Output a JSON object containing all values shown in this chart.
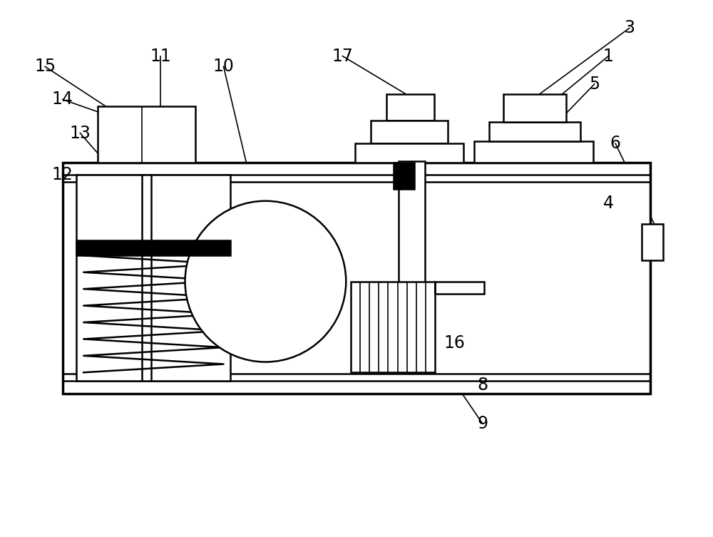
{
  "bg_color": "#ffffff",
  "line_color": "#000000",
  "lw": 1.8,
  "lw_thick": 2.5,
  "lw_thin": 1.2,
  "fig_width": 10.0,
  "fig_height": 7.53,
  "dpi": 100
}
